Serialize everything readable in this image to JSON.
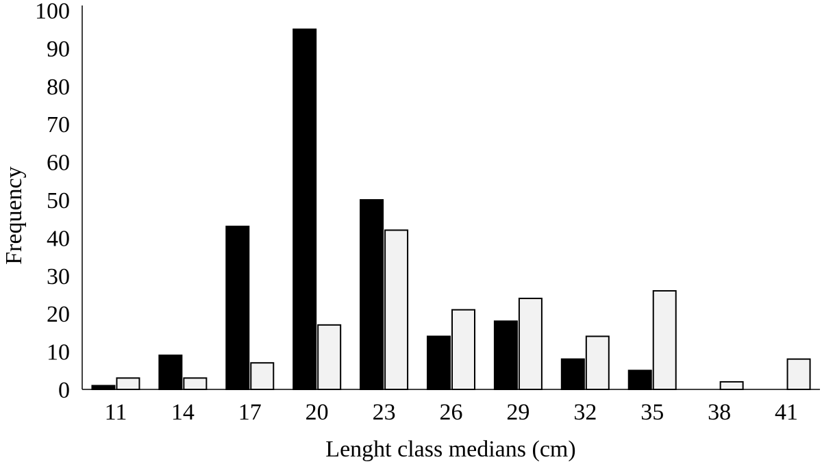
{
  "chart_data": {
    "type": "bar",
    "title": "",
    "xlabel": "Lenght class medians (cm)",
    "ylabel": "Frequency",
    "ylim": [
      0,
      100
    ],
    "yticks": [
      0,
      10,
      20,
      30,
      40,
      50,
      60,
      70,
      80,
      90,
      100
    ],
    "grid": false,
    "legend": "none",
    "categories": [
      "11",
      "14",
      "17",
      "20",
      "23",
      "26",
      "29",
      "32",
      "35",
      "38",
      "41"
    ],
    "series": [
      {
        "color": "#000000",
        "values": [
          1,
          9,
          43,
          95,
          50,
          14,
          18,
          8,
          5,
          0,
          0
        ]
      },
      {
        "color": "#f2f2f2",
        "values": [
          3,
          3,
          7,
          17,
          42,
          21,
          24,
          14,
          26,
          2,
          8
        ]
      }
    ]
  }
}
